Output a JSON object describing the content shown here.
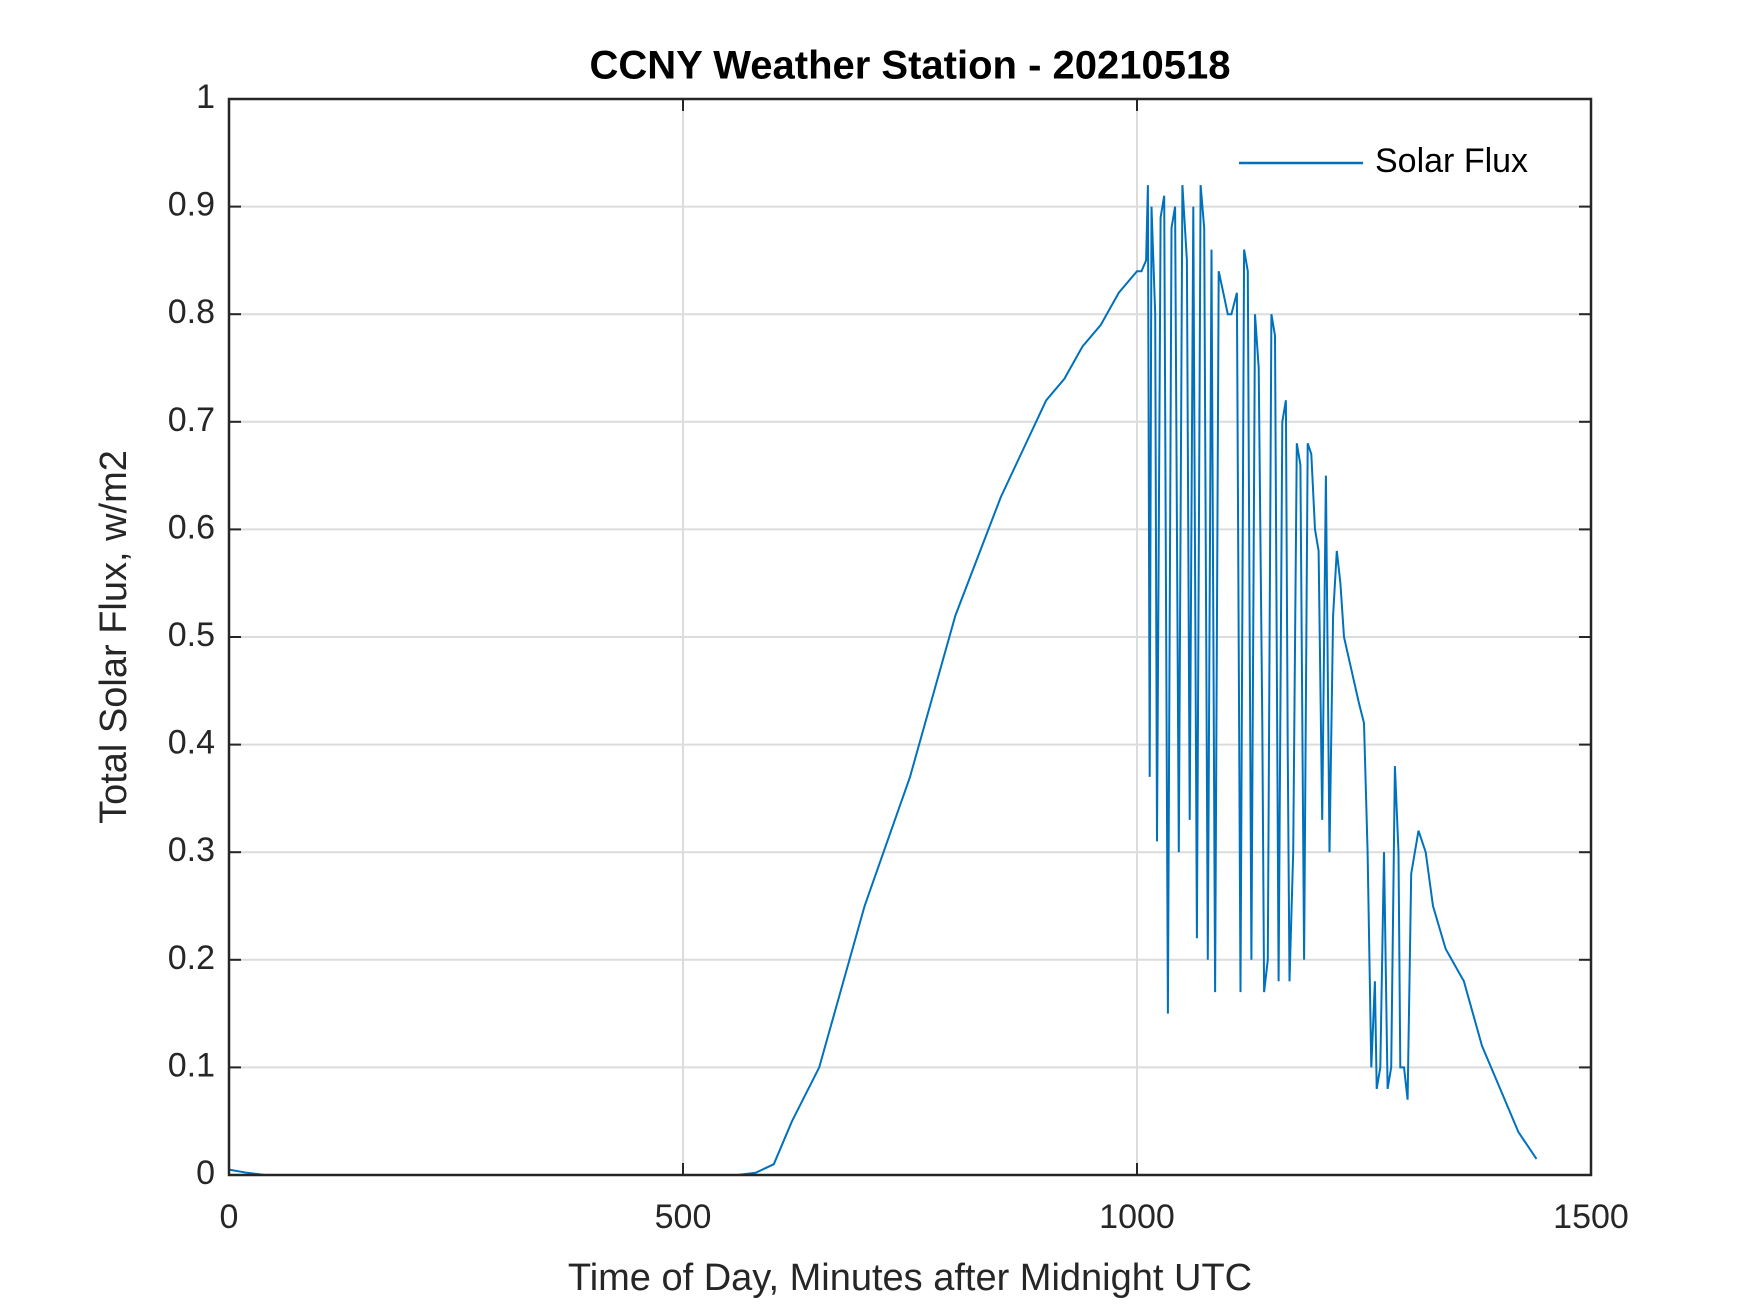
{
  "chart_data": {
    "type": "line",
    "title": "CCNY Weather Station - 20210518",
    "xlabel": "Time of Day, Minutes after Midnight UTC",
    "ylabel": "Total Solar Flux, w/m2",
    "xlim": [
      0,
      1500
    ],
    "xticks": [
      0,
      500,
      1000,
      1500
    ],
    "ylim": [
      0,
      1
    ],
    "yticks": [
      0,
      0.1,
      0.2,
      0.3,
      0.4,
      0.5,
      0.6,
      0.7,
      0.8,
      0.9,
      1
    ],
    "grid": true,
    "legend": "northeast",
    "x": [
      0,
      20,
      40,
      100,
      200,
      300,
      400,
      500,
      560,
      580,
      600,
      610,
      620,
      650,
      700,
      750,
      800,
      850,
      900,
      920,
      940,
      960,
      980,
      1000,
      1005,
      1010,
      1012,
      1014,
      1016,
      1020,
      1022,
      1026,
      1030,
      1034,
      1038,
      1042,
      1046,
      1050,
      1055,
      1058,
      1062,
      1066,
      1070,
      1074,
      1078,
      1082,
      1086,
      1090,
      1095,
      1100,
      1104,
      1110,
      1114,
      1118,
      1122,
      1126,
      1130,
      1134,
      1138,
      1140,
      1144,
      1148,
      1152,
      1156,
      1160,
      1164,
      1166,
      1168,
      1172,
      1176,
      1180,
      1184,
      1188,
      1192,
      1196,
      1200,
      1204,
      1208,
      1212,
      1216,
      1220,
      1224,
      1228,
      1236,
      1244,
      1250,
      1254,
      1258,
      1262,
      1264,
      1268,
      1272,
      1276,
      1280,
      1284,
      1288,
      1290,
      1294,
      1298,
      1302,
      1310,
      1318,
      1326,
      1340,
      1360,
      1380,
      1400,
      1420,
      1440
    ],
    "series": [
      {
        "name": "Solar Flux",
        "color": "#0072bd",
        "values": [
          0.005,
          0.002,
          0,
          0,
          0,
          0,
          0,
          0,
          0,
          0.002,
          0.01,
          0.03,
          0.05,
          0.1,
          0.25,
          0.37,
          0.52,
          0.63,
          0.72,
          0.74,
          0.77,
          0.79,
          0.82,
          0.84,
          0.84,
          0.85,
          0.92,
          0.37,
          0.9,
          0.8,
          0.31,
          0.89,
          0.91,
          0.15,
          0.88,
          0.9,
          0.3,
          0.92,
          0.85,
          0.33,
          0.9,
          0.22,
          0.92,
          0.88,
          0.2,
          0.86,
          0.17,
          0.84,
          0.82,
          0.8,
          0.8,
          0.82,
          0.17,
          0.86,
          0.84,
          0.2,
          0.8,
          0.75,
          0.42,
          0.17,
          0.2,
          0.8,
          0.78,
          0.18,
          0.7,
          0.72,
          0.4,
          0.18,
          0.3,
          0.68,
          0.66,
          0.2,
          0.68,
          0.67,
          0.6,
          0.58,
          0.33,
          0.65,
          0.3,
          0.52,
          0.58,
          0.55,
          0.5,
          0.47,
          0.44,
          0.42,
          0.3,
          0.1,
          0.18,
          0.08,
          0.1,
          0.3,
          0.08,
          0.1,
          0.38,
          0.3,
          0.1,
          0.1,
          0.07,
          0.28,
          0.32,
          0.3,
          0.25,
          0.21,
          0.18,
          0.12,
          0.08,
          0.04,
          0.015
        ]
      }
    ]
  }
}
